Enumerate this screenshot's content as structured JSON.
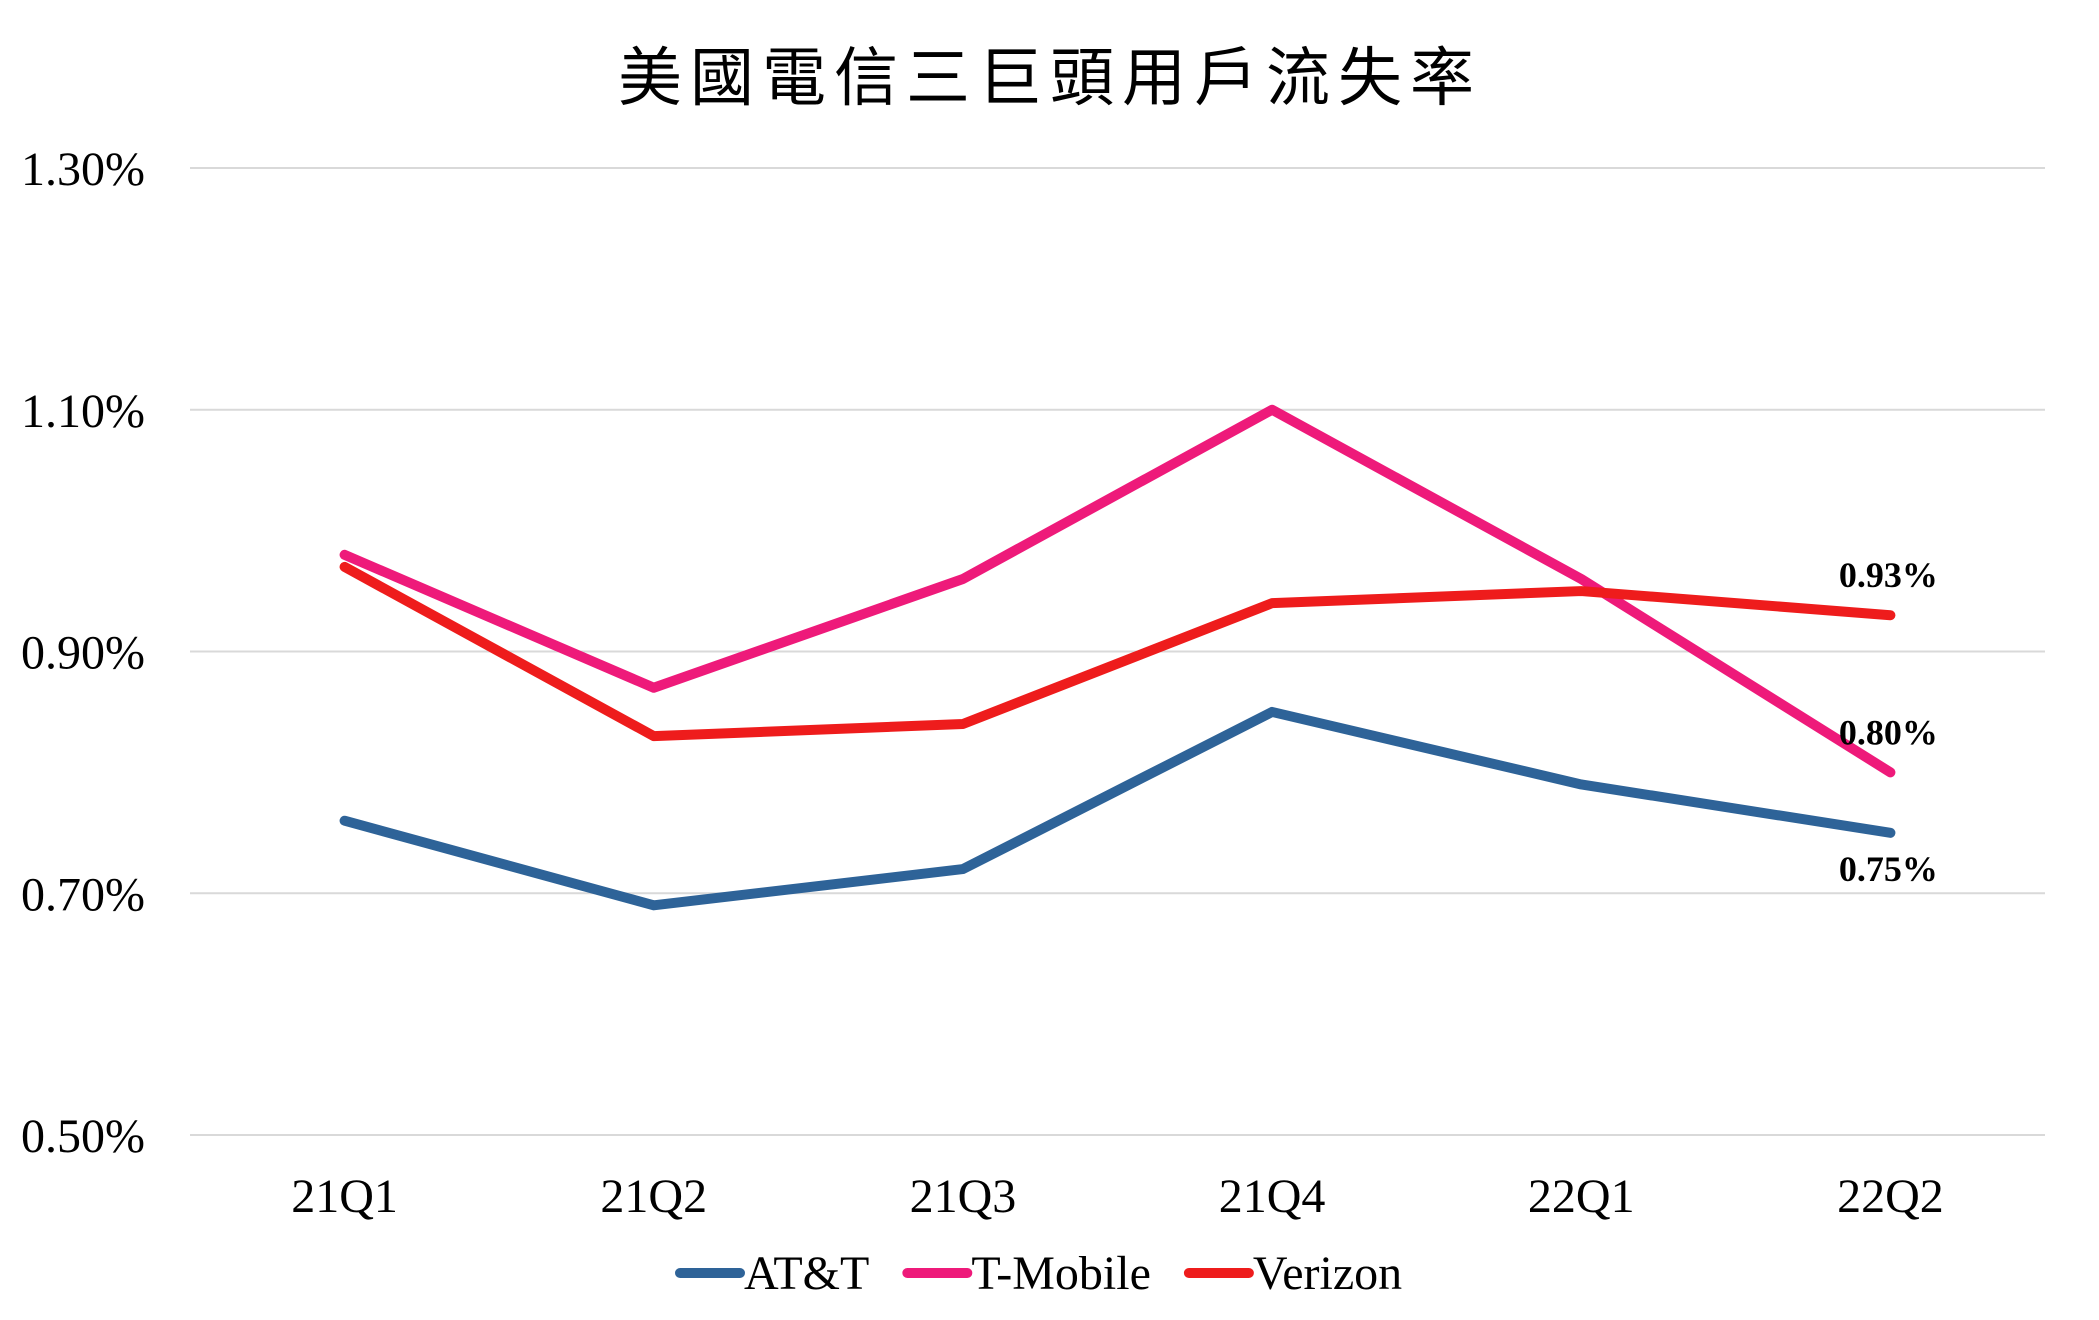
{
  "chart_data": {
    "type": "line",
    "title": "美國電信三巨頭用戶流失率",
    "xlabel": "",
    "ylabel": "",
    "categories": [
      "21Q1",
      "21Q2",
      "21Q3",
      "21Q4",
      "22Q1",
      "22Q2"
    ],
    "ylim": [
      0.5,
      1.3
    ],
    "yticks": [
      0.5,
      0.7,
      0.9,
      1.1,
      1.3
    ],
    "ytick_labels": [
      "0.50%",
      "0.70%",
      "0.90%",
      "1.10%",
      "1.30%"
    ],
    "grid": "horizontal",
    "legend_position": "bottom",
    "series": [
      {
        "name": "AT&T",
        "color": "#2e6398",
        "values": [
          0.76,
          0.69,
          0.72,
          0.85,
          0.79,
          0.75
        ],
        "end_label": "0.75%"
      },
      {
        "name": "T-Mobile",
        "color": "#ee1a7a",
        "values": [
          0.98,
          0.87,
          0.96,
          1.1,
          0.96,
          0.8
        ],
        "end_label": "0.80%"
      },
      {
        "name": "Verizon",
        "color": "#ee1c1c",
        "values": [
          0.97,
          0.83,
          0.84,
          0.94,
          0.95,
          0.93
        ],
        "end_label": "0.93%"
      }
    ]
  }
}
